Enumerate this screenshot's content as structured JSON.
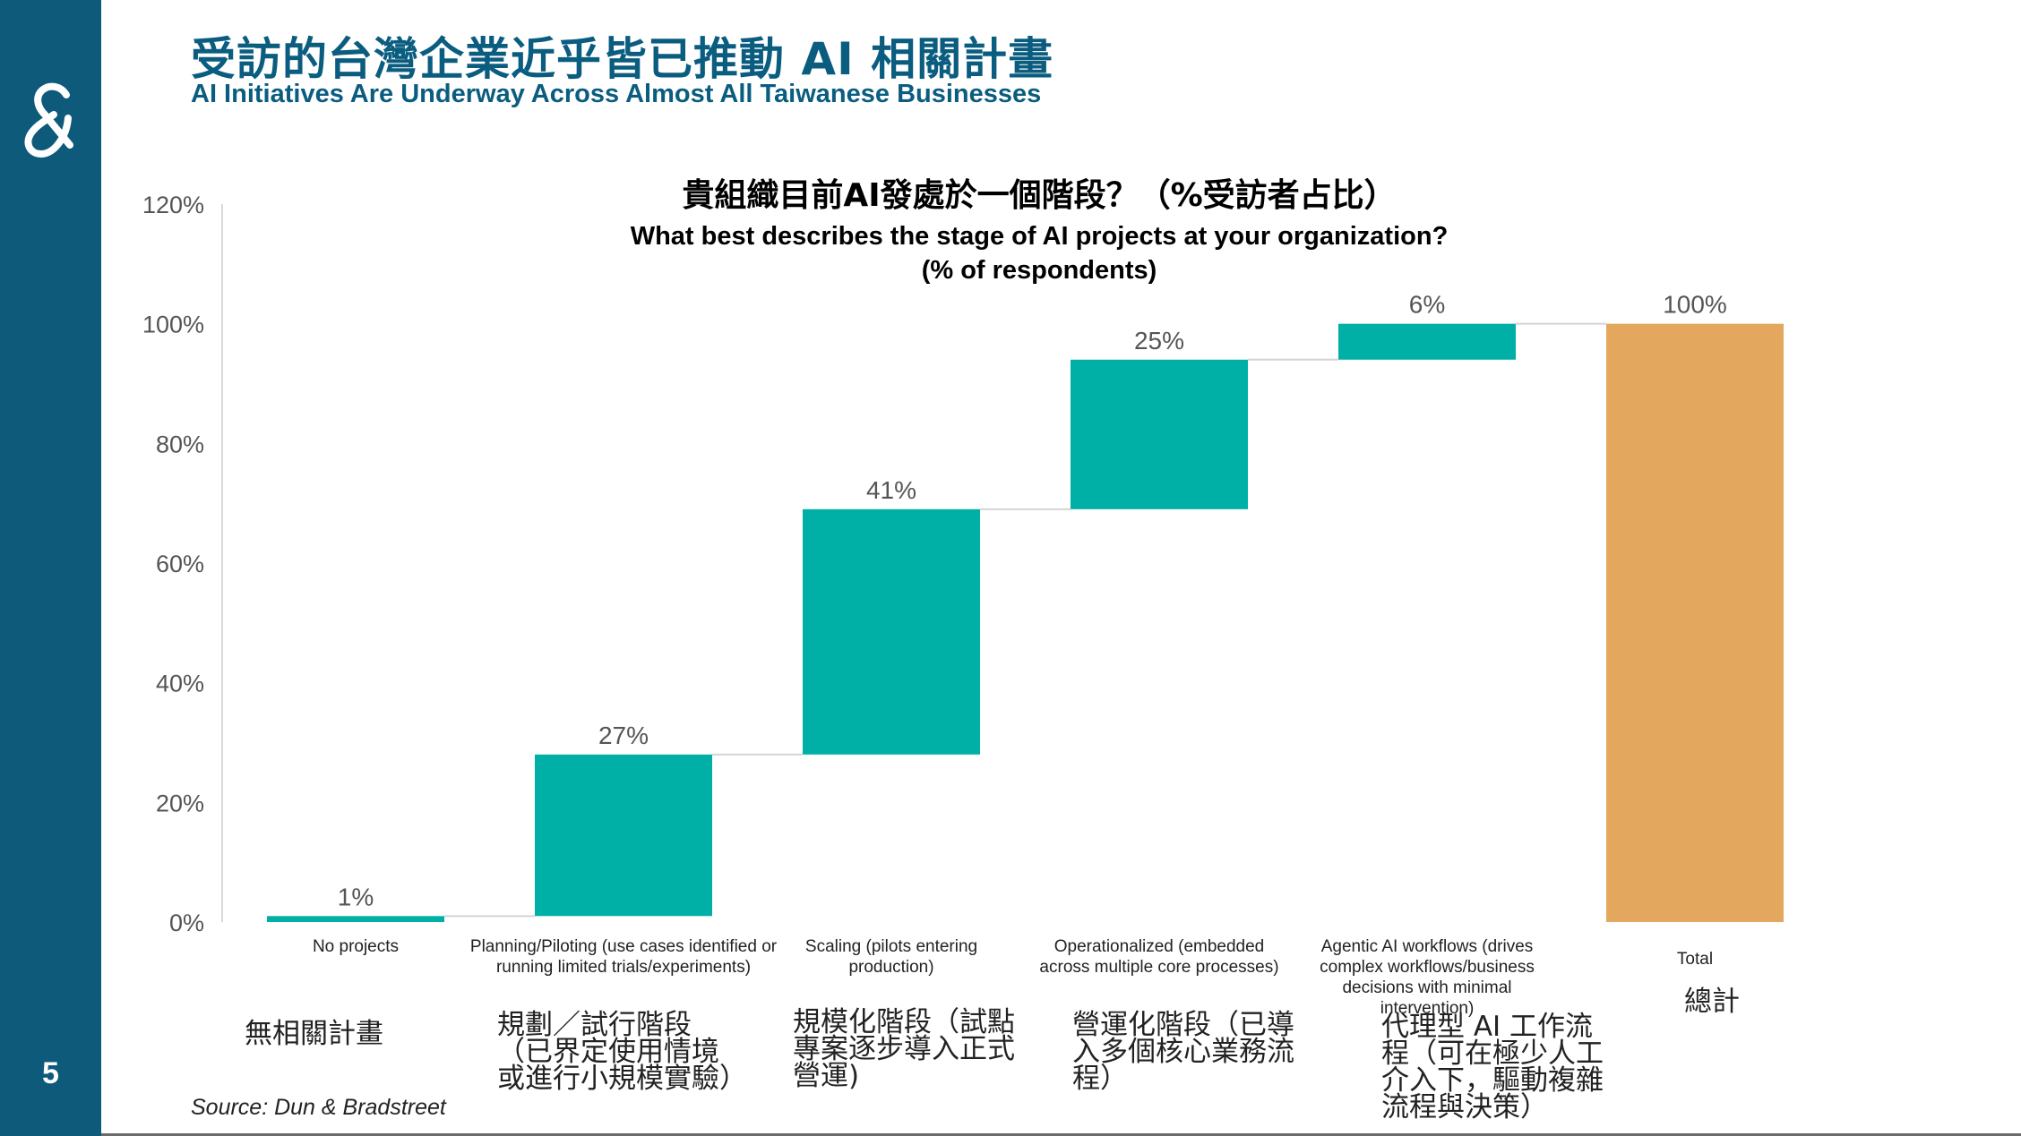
{
  "page": {
    "number": "5"
  },
  "header": {
    "title_zh": "受訪的台灣企業近乎皆已推動 AI 相關計畫",
    "title_en": "AI Initiatives Are Underway Across Almost All Taiwanese Businesses"
  },
  "source": "Source: Dun & Bradstreet",
  "colors": {
    "sidebar": "#0d5a7a",
    "title": "#0b5d80",
    "bar": "#00b0a6",
    "total": "#e3a85d",
    "connector": "#d4d4d4"
  },
  "chart_data": {
    "type": "bar",
    "subtype": "waterfall",
    "title_zh": "貴組織目前AI發處於一個階段？（%受訪者占比）",
    "title_en": "What best describes the stage of AI projects at your organization? (% of respondents)",
    "ylim": [
      0,
      120
    ],
    "yticks": [
      0,
      20,
      40,
      60,
      80,
      100,
      120
    ],
    "ytick_labels": [
      "0%",
      "20%",
      "40%",
      "60%",
      "80%",
      "100%",
      "120%"
    ],
    "grid": false,
    "categories": [
      "No projects",
      "Planning/Piloting (use cases identified or running limited trials/experiments)",
      "Scaling (pilots entering production)",
      "Operationalized (embedded across multiple core processes)",
      "Agentic AI workflows (drives complex workflows/business decisions with minimal intervention)",
      "Total"
    ],
    "category_lines": [
      [
        "No projects"
      ],
      [
        "Planning/Piloting (use cases identified or",
        "running limited trials/experiments)"
      ],
      [
        "Scaling (pilots entering",
        "production)"
      ],
      [
        "Operationalized (embedded",
        "across multiple core processes)"
      ],
      [
        "Agentic AI workflows (drives",
        "complex workflows/business",
        "decisions with minimal",
        "intervention)"
      ],
      [
        "Total"
      ]
    ],
    "categories_zh": [
      [
        "無相關計畫"
      ],
      [
        "規劃／試行階段",
        "（已界定使用情境",
        "或進行小規模實驗）"
      ],
      [
        "規模化階段（試點",
        "專案逐步導入正式",
        "營運)"
      ],
      [
        "營運化階段（已導",
        "入多個核心業務流",
        "程）"
      ],
      [
        "代理型 AI 工作流",
        "程（可在極少人工",
        "介入下，驅動複雜",
        "流程與決策）"
      ],
      [
        "總計"
      ]
    ],
    "values": [
      1,
      27,
      41,
      25,
      6,
      100
    ],
    "value_labels": [
      "1%",
      "27%",
      "41%",
      "25%",
      "6%",
      "100%"
    ],
    "is_total": [
      false,
      false,
      false,
      false,
      false,
      true
    ]
  }
}
